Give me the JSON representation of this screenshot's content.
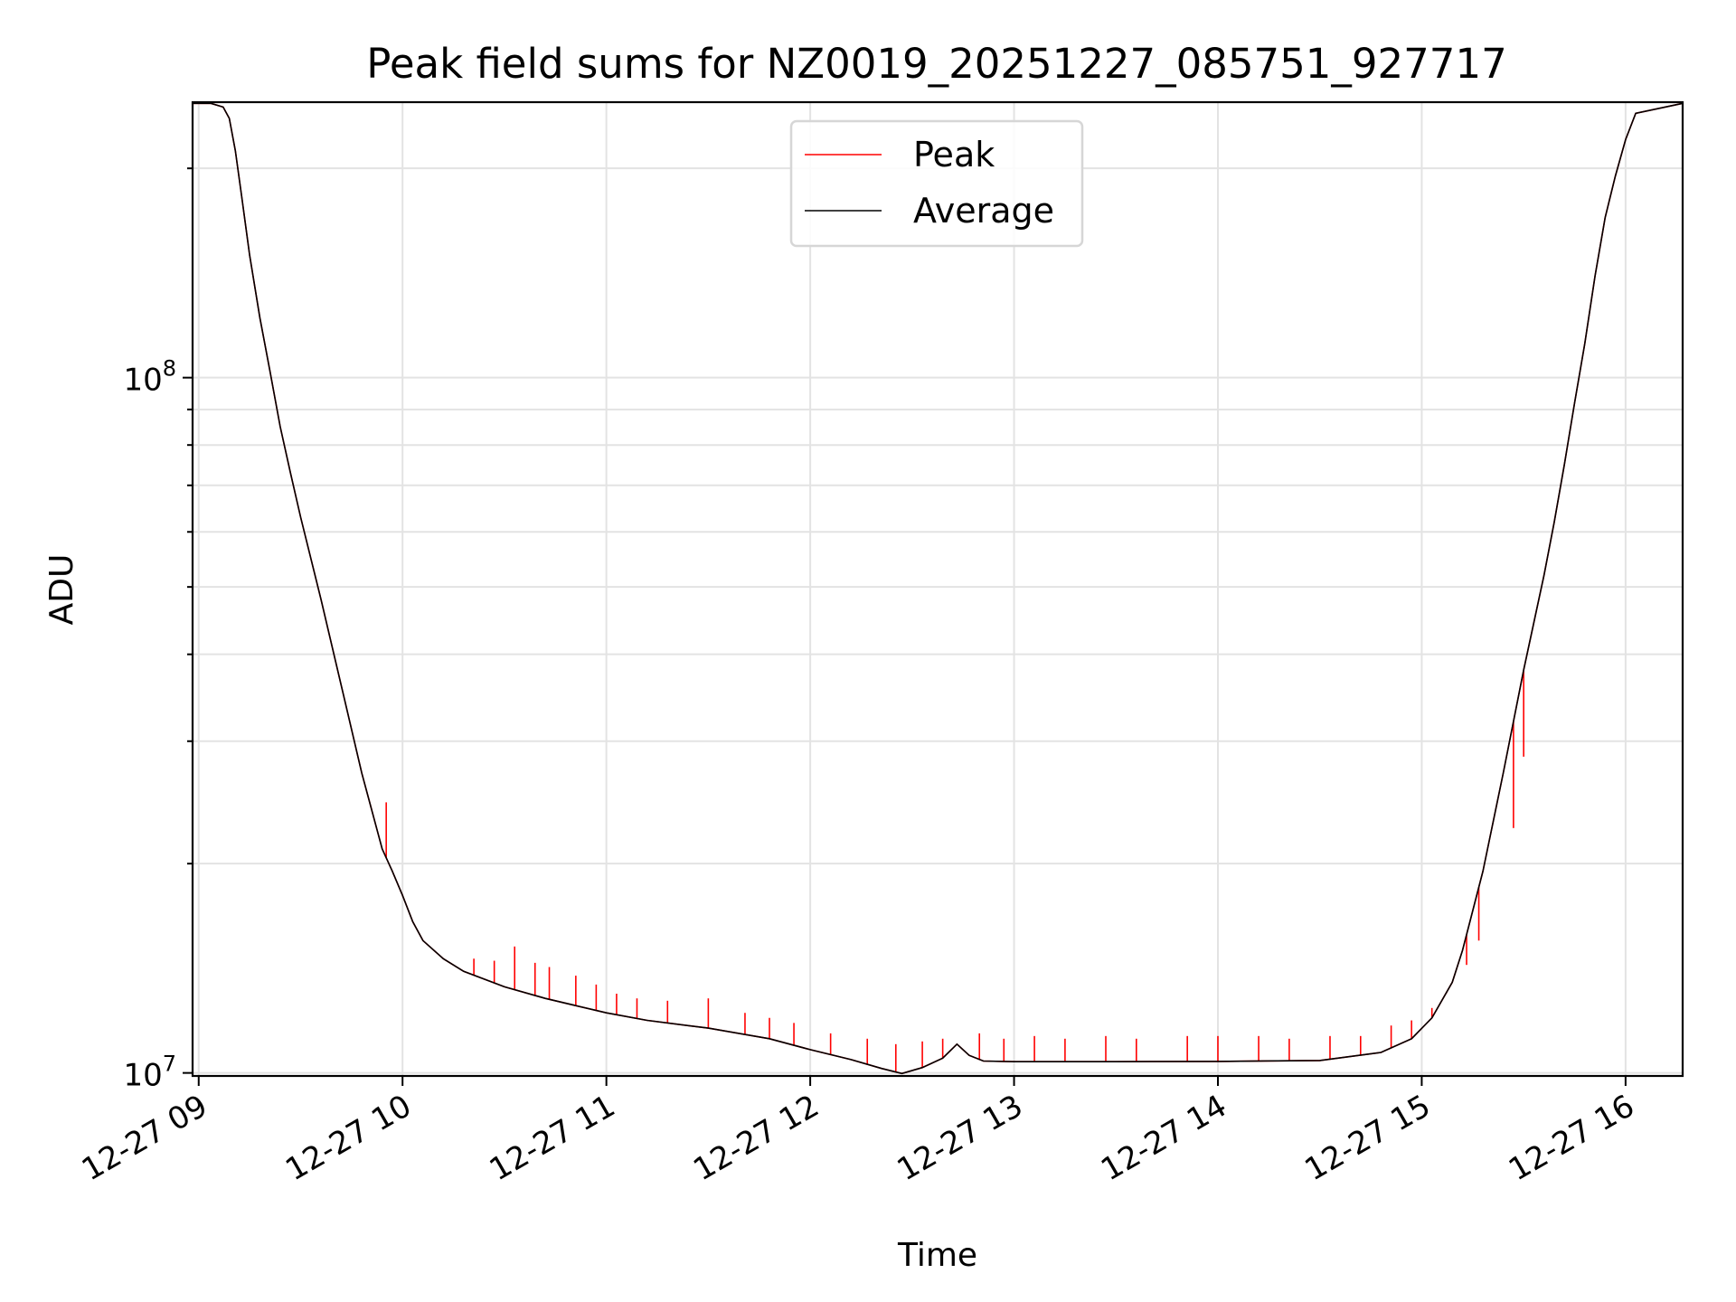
{
  "chart_data": {
    "type": "line",
    "title": "Peak field sums for NZ0019_20251227_085751_927717",
    "xlabel": "Time",
    "ylabel": "ADU",
    "yscale": "log",
    "ylim": [
      9900000,
      249000000
    ],
    "xlim": [
      8.97,
      16.28
    ],
    "x_units": "hour of day (2025-12-27)",
    "x_ticks": [
      {
        "value": 9,
        "label": "12-27 09"
      },
      {
        "value": 10,
        "label": "12-27 10"
      },
      {
        "value": 11,
        "label": "12-27 11"
      },
      {
        "value": 12,
        "label": "12-27 12"
      },
      {
        "value": 13,
        "label": "12-27 13"
      },
      {
        "value": 14,
        "label": "12-27 14"
      },
      {
        "value": 15,
        "label": "12-27 15"
      },
      {
        "value": 16,
        "label": "12-27 16"
      }
    ],
    "y_ticks": [
      {
        "value": 10000000,
        "base": "10",
        "exp": "7"
      },
      {
        "value": 100000000,
        "base": "10",
        "exp": "8"
      }
    ],
    "grid": true,
    "legend_position": "top-center",
    "series": [
      {
        "name": "Peak",
        "color": "#ff0000",
        "x": [
          8.97,
          9.06,
          9.12,
          9.15,
          9.18,
          9.21,
          9.25,
          9.3,
          9.35,
          9.4,
          9.45,
          9.5,
          9.6,
          9.7,
          9.8,
          9.9,
          9.95,
          10.0,
          10.05,
          10.1,
          10.2,
          10.3,
          10.5,
          10.7,
          11.0,
          11.2,
          11.5,
          11.8,
          12.0,
          12.2,
          12.35,
          12.45,
          12.55,
          12.65,
          12.72,
          12.78,
          12.85,
          13.0,
          13.5,
          14.0,
          14.5,
          14.8,
          14.95,
          15.05,
          15.15,
          15.2,
          15.3,
          15.4,
          15.5,
          15.6,
          15.65,
          15.7,
          15.75,
          15.8,
          15.85,
          15.9,
          15.95,
          16.0,
          16.05,
          16.28
        ],
        "y": [
          248000000,
          248000000,
          245000000,
          236000000,
          212000000,
          183000000,
          150000000,
          122000000,
          102000000,
          85000000,
          73000000,
          63000000,
          48000000,
          36000000,
          27000000,
          21000000,
          19500000,
          18000000,
          16500000,
          15500000,
          14600000,
          14000000,
          13300000,
          12800000,
          12200000,
          11900000,
          11600000,
          11200000,
          10800000,
          10450000,
          10150000,
          9980000,
          10180000,
          10500000,
          11000000,
          10600000,
          10400000,
          10380000,
          10380000,
          10390000,
          10420000,
          10700000,
          11200000,
          12000000,
          13500000,
          15000000,
          19500000,
          27000000,
          38000000,
          52000000,
          62000000,
          75000000,
          92000000,
          112000000,
          140000000,
          170000000,
          195000000,
          220000000,
          240000000,
          248000000
        ],
        "spikes": [
          {
            "x": 9.92,
            "y": 24500000
          },
          {
            "x": 10.35,
            "y": 14600000
          },
          {
            "x": 10.45,
            "y": 14500000
          },
          {
            "x": 10.55,
            "y": 15200000
          },
          {
            "x": 10.65,
            "y": 14400000
          },
          {
            "x": 10.72,
            "y": 14200000
          },
          {
            "x": 10.85,
            "y": 13800000
          },
          {
            "x": 10.95,
            "y": 13400000
          },
          {
            "x": 11.05,
            "y": 13000000
          },
          {
            "x": 11.15,
            "y": 12800000
          },
          {
            "x": 11.3,
            "y": 12700000
          },
          {
            "x": 11.5,
            "y": 12800000
          },
          {
            "x": 11.68,
            "y": 12200000
          },
          {
            "x": 11.8,
            "y": 12000000
          },
          {
            "x": 11.92,
            "y": 11800000
          },
          {
            "x": 12.1,
            "y": 11400000
          },
          {
            "x": 12.28,
            "y": 11200000
          },
          {
            "x": 12.42,
            "y": 11000000
          },
          {
            "x": 12.55,
            "y": 11100000
          },
          {
            "x": 12.65,
            "y": 11200000
          },
          {
            "x": 12.83,
            "y": 11400000
          },
          {
            "x": 12.95,
            "y": 11200000
          },
          {
            "x": 13.1,
            "y": 11300000
          },
          {
            "x": 13.25,
            "y": 11200000
          },
          {
            "x": 13.45,
            "y": 11300000
          },
          {
            "x": 13.6,
            "y": 11200000
          },
          {
            "x": 13.85,
            "y": 11300000
          },
          {
            "x": 14.0,
            "y": 11300000
          },
          {
            "x": 14.2,
            "y": 11300000
          },
          {
            "x": 14.35,
            "y": 11200000
          },
          {
            "x": 14.55,
            "y": 11300000
          },
          {
            "x": 14.7,
            "y": 11300000
          },
          {
            "x": 14.85,
            "y": 11700000
          },
          {
            "x": 14.95,
            "y": 11900000
          },
          {
            "x": 15.05,
            "y": 12400000
          },
          {
            "x": 15.12,
            "y": 13000000
          },
          {
            "x": 15.22,
            "y": 14300000
          },
          {
            "x": 15.28,
            "y": 15500000
          },
          {
            "x": 15.45,
            "y": 22500000
          },
          {
            "x": 15.5,
            "y": 28500000
          }
        ]
      },
      {
        "name": "Average",
        "color": "#000000",
        "x": [
          8.97,
          9.06,
          9.12,
          9.15,
          9.18,
          9.21,
          9.25,
          9.3,
          9.35,
          9.4,
          9.45,
          9.5,
          9.6,
          9.7,
          9.8,
          9.9,
          9.95,
          10.0,
          10.05,
          10.1,
          10.2,
          10.3,
          10.5,
          10.7,
          11.0,
          11.2,
          11.5,
          11.8,
          12.0,
          12.2,
          12.35,
          12.45,
          12.55,
          12.65,
          12.72,
          12.78,
          12.85,
          13.0,
          13.5,
          14.0,
          14.5,
          14.8,
          14.95,
          15.05,
          15.15,
          15.2,
          15.3,
          15.4,
          15.5,
          15.6,
          15.65,
          15.7,
          15.75,
          15.8,
          15.85,
          15.9,
          15.95,
          16.0,
          16.05,
          16.28
        ],
        "y": [
          248000000,
          248000000,
          245000000,
          236000000,
          212000000,
          183000000,
          150000000,
          122000000,
          102000000,
          85000000,
          73000000,
          63000000,
          48000000,
          36000000,
          27000000,
          21000000,
          19500000,
          18000000,
          16500000,
          15500000,
          14600000,
          14000000,
          13300000,
          12800000,
          12200000,
          11900000,
          11600000,
          11200000,
          10800000,
          10450000,
          10150000,
          9980000,
          10180000,
          10500000,
          11000000,
          10600000,
          10400000,
          10380000,
          10380000,
          10390000,
          10420000,
          10700000,
          11200000,
          12000000,
          13500000,
          15000000,
          19500000,
          27000000,
          38000000,
          52000000,
          62000000,
          75000000,
          92000000,
          112000000,
          140000000,
          170000000,
          195000000,
          220000000,
          240000000,
          248000000
        ]
      }
    ]
  }
}
